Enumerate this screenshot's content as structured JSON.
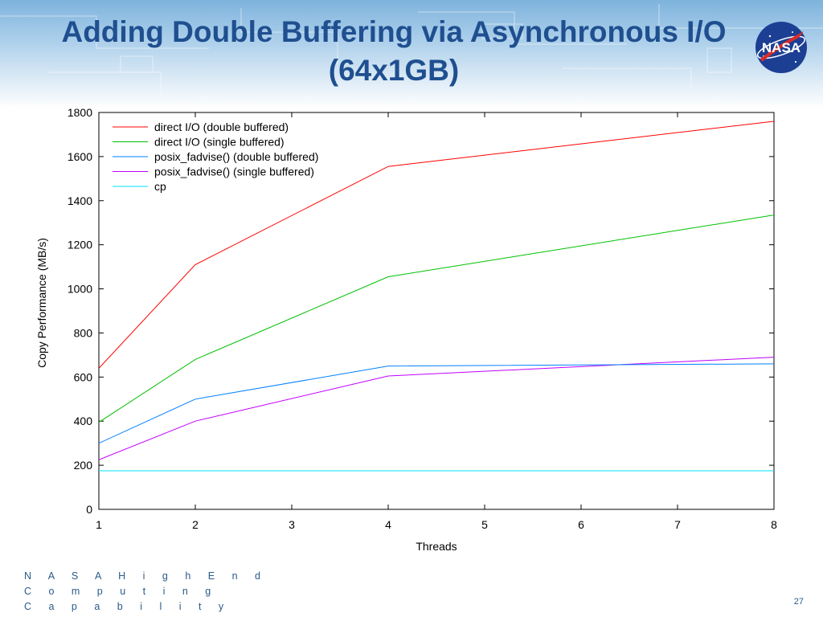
{
  "slide": {
    "title_line1": "Adding Double Buffering via Asynchronous I/O",
    "title_line2": "(64x1GB)",
    "logo_text": "NASA",
    "footer_line1": "N A S A  H i g h  E n d",
    "footer_line2": "C o m p u t i n g",
    "footer_line3": "C a p a b i l i t y",
    "page_number": "27",
    "colors": {
      "title": "#1f4f8f",
      "footer": "#2a5a8a",
      "logo_blue": "#1c3f94",
      "logo_red": "#d92b2b"
    }
  },
  "chart_data": {
    "type": "line",
    "title": "",
    "xlabel": "Threads",
    "ylabel": "Copy Performance (MB/s)",
    "x": [
      1,
      2,
      4,
      8
    ],
    "xlim": [
      1,
      8
    ],
    "ylim": [
      0,
      1800
    ],
    "xticks": [
      "1",
      "2",
      "3",
      "4",
      "5",
      "6",
      "7",
      "8"
    ],
    "yticks": [
      "0",
      "200",
      "400",
      "600",
      "800",
      "1000",
      "1200",
      "1400",
      "1600",
      "1800"
    ],
    "grid": false,
    "legend_position": "top-left",
    "series": [
      {
        "name": "direct I/O (double buffered)",
        "color": "#ff0000",
        "values": [
          640,
          1110,
          1555,
          1760
        ]
      },
      {
        "name": "direct I/O (single buffered)",
        "color": "#00c000",
        "values": [
          395,
          680,
          1055,
          1335
        ]
      },
      {
        "name": "posix_fadvise() (double buffered)",
        "color": "#0080ff",
        "values": [
          300,
          500,
          650,
          660
        ]
      },
      {
        "name": "posix_fadvise() (single buffered)",
        "color": "#c000ff",
        "values": [
          225,
          400,
          605,
          690
        ]
      },
      {
        "name": "cp",
        "color": "#00e0ff",
        "values": [
          175,
          175,
          175,
          175
        ]
      }
    ]
  }
}
